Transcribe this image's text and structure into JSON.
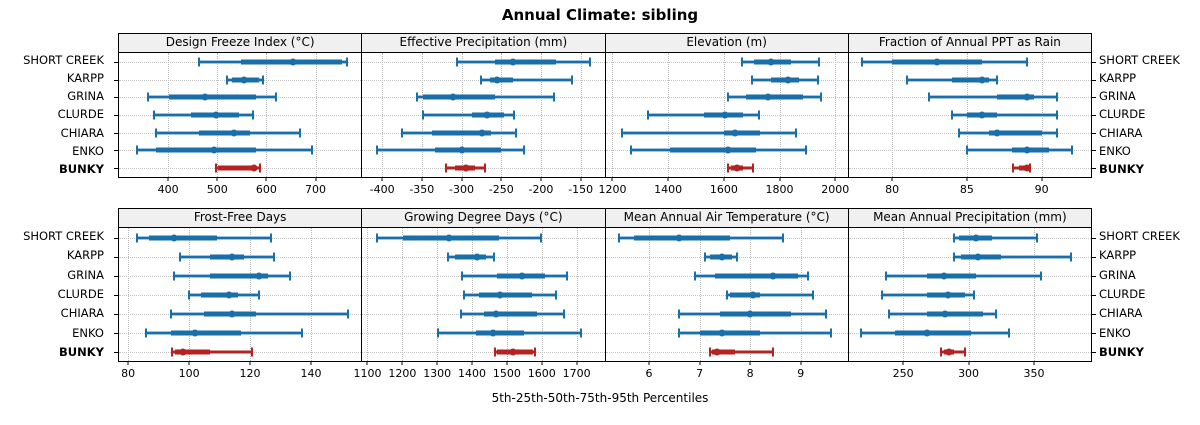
{
  "title": "Annual Climate: sibling",
  "caption": "5th-25th-50th-75th-95th Percentiles",
  "percentiles": [
    "5th",
    "25th",
    "50th",
    "75th",
    "95th"
  ],
  "sites": [
    "SHORT CREEK",
    "KARPP",
    "GRINA",
    "CLURDE",
    "CHIARA",
    "ENKO",
    "BUNKY"
  ],
  "highlight_site": "BUNKY",
  "colors": {
    "series": "#1a6fa8",
    "series_light": "#a0c6df",
    "highlight": "#b22322",
    "highlight_light": "#d9958f",
    "header_bg": "#f0f0f0",
    "grid": "#bdbdbd",
    "border": "#000000"
  },
  "chart_data": [
    {
      "type": "interval",
      "row": 1,
      "title": "Design Freeze Index (°C)",
      "xlim": [
        300,
        793
      ],
      "ticks": [
        400,
        500,
        600,
        700
      ],
      "series": [
        {
          "name": "SHORT CREEK",
          "values": [
            463,
            549,
            655,
            753,
            763
          ]
        },
        {
          "name": "KARPP",
          "values": [
            519,
            530,
            555,
            584,
            594
          ]
        },
        {
          "name": "GRINA",
          "values": [
            360,
            402,
            474,
            578,
            620
          ]
        },
        {
          "name": "CLURDE",
          "values": [
            372,
            446,
            498,
            544,
            573
          ]
        },
        {
          "name": "CHIARA",
          "values": [
            376,
            463,
            535,
            567,
            669
          ]
        },
        {
          "name": "ENKO",
          "values": [
            337,
            375,
            493,
            578,
            692
          ]
        },
        {
          "name": "BUNKY",
          "values": [
            498,
            502,
            575,
            578,
            586
          ]
        }
      ]
    },
    {
      "type": "interval",
      "row": 1,
      "title": "Effective Precipitation (mm)",
      "xlim": [
        -425,
        -120
      ],
      "ticks": [
        -400,
        -350,
        -300,
        -250,
        -200,
        -150
      ],
      "series": [
        {
          "name": "SHORT CREEK",
          "values": [
            -306,
            -258,
            -235,
            -181,
            -138
          ]
        },
        {
          "name": "KARPP",
          "values": [
            -275,
            -264,
            -255,
            -235,
            -161
          ]
        },
        {
          "name": "GRINA",
          "values": [
            -356,
            -349,
            -311,
            -258,
            -184
          ]
        },
        {
          "name": "CLURDE",
          "values": [
            -349,
            -287,
            -268,
            -246,
            -234
          ]
        },
        {
          "name": "CHIARA",
          "values": [
            -375,
            -337,
            -274,
            -263,
            -232
          ]
        },
        {
          "name": "ENKO",
          "values": [
            -407,
            -334,
            -300,
            -250,
            -221
          ]
        },
        {
          "name": "BUNKY",
          "values": [
            -320,
            -308,
            -295,
            -283,
            -271
          ]
        }
      ]
    },
    {
      "type": "interval",
      "row": 1,
      "title": "Elevation (m)",
      "xlim": [
        1175,
        2045
      ],
      "ticks": [
        1200,
        1400,
        1600,
        1800,
        2000
      ],
      "series": [
        {
          "name": "SHORT CREEK",
          "values": [
            1666,
            1708,
            1770,
            1843,
            1940
          ]
        },
        {
          "name": "KARPP",
          "values": [
            1701,
            1770,
            1830,
            1871,
            1939
          ]
        },
        {
          "name": "GRINA",
          "values": [
            1615,
            1680,
            1760,
            1885,
            1948
          ]
        },
        {
          "name": "CLURDE",
          "values": [
            1328,
            1528,
            1605,
            1669,
            1725
          ]
        },
        {
          "name": "CHIARA",
          "values": [
            1236,
            1602,
            1639,
            1731,
            1860
          ]
        },
        {
          "name": "ENKO",
          "values": [
            1267,
            1405,
            1616,
            1714,
            1894
          ]
        },
        {
          "name": "BUNKY",
          "values": [
            1616,
            1624,
            1649,
            1669,
            1706
          ]
        }
      ]
    },
    {
      "type": "interval",
      "row": 1,
      "title": "Fraction of Annual PPT as Rain",
      "xlim": [
        77.1,
        93.3
      ],
      "ticks": [
        80,
        85,
        90
      ],
      "series": [
        {
          "name": "SHORT CREEK",
          "values": [
            78,
            80,
            83,
            86,
            89
          ]
        },
        {
          "name": "KARPP",
          "values": [
            81,
            84,
            86,
            86.5,
            87
          ]
        },
        {
          "name": "GRINA",
          "values": [
            82.5,
            87,
            89,
            89.5,
            91
          ]
        },
        {
          "name": "CLURDE",
          "values": [
            84,
            85,
            86,
            87,
            91
          ]
        },
        {
          "name": "CHIARA",
          "values": [
            84.5,
            86.5,
            87,
            90,
            91
          ]
        },
        {
          "name": "ENKO",
          "values": [
            85,
            88,
            89,
            90.5,
            92
          ]
        },
        {
          "name": "BUNKY",
          "values": [
            88.1,
            88.5,
            89,
            89.1,
            89.2
          ]
        }
      ]
    },
    {
      "type": "interval",
      "row": 2,
      "title": "Frost-Free Days",
      "xlim": [
        77,
        156.5
      ],
      "ticks": [
        80,
        100,
        120,
        140
      ],
      "series": [
        {
          "name": "SHORT CREEK",
          "values": [
            83,
            87,
            95,
            109,
            127
          ]
        },
        {
          "name": "KARPP",
          "values": [
            97,
            107,
            114,
            118,
            128
          ]
        },
        {
          "name": "GRINA",
          "values": [
            95,
            107,
            123,
            126,
            133
          ]
        },
        {
          "name": "CLURDE",
          "values": [
            100,
            104,
            113,
            116,
            123
          ]
        },
        {
          "name": "CHIARA",
          "values": [
            94,
            105,
            114,
            122,
            152
          ]
        },
        {
          "name": "ENKO",
          "values": [
            86,
            94,
            102,
            117,
            137
          ]
        },
        {
          "name": "BUNKY",
          "values": [
            94.5,
            95.5,
            98,
            107,
            120.5
          ]
        }
      ]
    },
    {
      "type": "interval",
      "row": 2,
      "title": "Growing Degree Days (°C)",
      "xlim": [
        1085,
        1780
      ],
      "ticks": [
        1100,
        1200,
        1300,
        1400,
        1500,
        1600,
        1700
      ],
      "series": [
        {
          "name": "SHORT CREEK",
          "values": [
            1126,
            1202,
            1335,
            1478,
            1599
          ]
        },
        {
          "name": "KARPP",
          "values": [
            1330,
            1352,
            1415,
            1440,
            1463
          ]
        },
        {
          "name": "GRINA",
          "values": [
            1371,
            1473,
            1542,
            1608,
            1671
          ]
        },
        {
          "name": "CLURDE",
          "values": [
            1376,
            1419,
            1479,
            1571,
            1640
          ]
        },
        {
          "name": "CHIARA",
          "values": [
            1367,
            1433,
            1470,
            1586,
            1665
          ]
        },
        {
          "name": "ENKO",
          "values": [
            1303,
            1410,
            1459,
            1548,
            1714
          ]
        },
        {
          "name": "BUNKY",
          "values": [
            1465,
            1471,
            1517,
            1576,
            1581
          ]
        }
      ]
    },
    {
      "type": "interval",
      "row": 2,
      "title": "Mean Annual Air Temperature (°C)",
      "xlim": [
        5.14,
        9.93
      ],
      "ticks": [
        6,
        7,
        8,
        9
      ],
      "series": [
        {
          "name": "SHORT CREEK",
          "values": [
            5.4,
            5.7,
            6.6,
            7.6,
            8.65
          ]
        },
        {
          "name": "KARPP",
          "values": [
            7.1,
            7.2,
            7.45,
            7.65,
            7.75
          ]
        },
        {
          "name": "GRINA",
          "values": [
            6.9,
            7.3,
            8.45,
            8.95,
            9.15
          ]
        },
        {
          "name": "CLURDE",
          "values": [
            7.55,
            7.6,
            8.05,
            8.2,
            9.25
          ]
        },
        {
          "name": "CHIARA",
          "values": [
            6.6,
            7.4,
            8.0,
            8.8,
            9.5
          ]
        },
        {
          "name": "ENKO",
          "values": [
            6.6,
            7.0,
            7.45,
            8.2,
            9.6
          ]
        },
        {
          "name": "BUNKY",
          "values": [
            7.2,
            7.25,
            7.35,
            7.7,
            8.45
          ]
        }
      ]
    },
    {
      "type": "interval",
      "row": 2,
      "title": "Mean Annual Precipitation (mm)",
      "xlim": [
        208.5,
        393.5
      ],
      "ticks": [
        250,
        300,
        350
      ],
      "series": [
        {
          "name": "SHORT CREEK",
          "values": [
            289,
            293,
            306,
            318,
            352
          ]
        },
        {
          "name": "KARPP",
          "values": [
            289,
            294,
            307,
            325,
            378
          ]
        },
        {
          "name": "GRINA",
          "values": [
            237,
            268,
            281,
            306,
            355
          ]
        },
        {
          "name": "CLURDE",
          "values": [
            234,
            268,
            284,
            297,
            304
          ]
        },
        {
          "name": "CHIARA",
          "values": [
            239,
            268,
            282,
            311,
            321
          ]
        },
        {
          "name": "ENKO",
          "values": [
            218,
            244,
            268,
            302,
            331
          ]
        },
        {
          "name": "BUNKY",
          "values": [
            279,
            281,
            285,
            289,
            297
          ]
        }
      ]
    }
  ]
}
